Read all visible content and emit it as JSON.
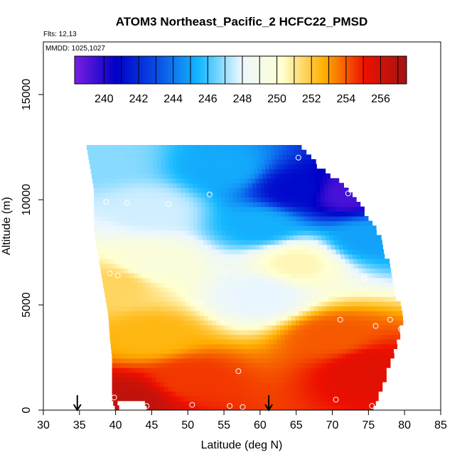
{
  "chart_data": {
    "type": "heatmap",
    "title": "ATOM3 Northeast_Pacific_2 HCFC22_PMSD",
    "flights_label": "Flts: 12,13",
    "dates_label": "MMDD: 1025,1027",
    "xlabel": "Latitude (deg N)",
    "ylabel": "Altitude (m)",
    "xlim": [
      30,
      85
    ],
    "ylim": [
      0,
      17500
    ],
    "x_ticks": [
      "30",
      "35",
      "40",
      "45",
      "50",
      "55",
      "60",
      "65",
      "70",
      "75",
      "80",
      "85"
    ],
    "y_ticks": [
      "0",
      "5000",
      "10000",
      "15000"
    ],
    "colorbar": {
      "min": 238.3,
      "max": 257.5,
      "tick_labels": [
        "240",
        "242",
        "244",
        "246",
        "248",
        "250",
        "252",
        "254",
        "256"
      ],
      "colors": [
        "#7a1fe0",
        "#0000c8",
        "#0a4fe6",
        "#15b8ff",
        "#eaf6ff",
        "#ffffd0",
        "#ffb000",
        "#ee1000",
        "#a21414"
      ]
    },
    "field": {
      "description_points": [
        {
          "lat": 38,
          "alt": 12000,
          "value": 246.8
        },
        {
          "lat": 55,
          "alt": 11500,
          "value": 245.2
        },
        {
          "lat": 65,
          "alt": 10500,
          "value": 241.0
        },
        {
          "lat": 72,
          "alt": 10300,
          "value": 239.3
        },
        {
          "lat": 45,
          "alt": 9500,
          "value": 247.6
        },
        {
          "lat": 60,
          "alt": 8800,
          "value": 245.3
        },
        {
          "lat": 75,
          "alt": 8200,
          "value": 245.0
        },
        {
          "lat": 45,
          "alt": 7000,
          "value": 249.8
        },
        {
          "lat": 65,
          "alt": 7000,
          "value": 250.6
        },
        {
          "lat": 40,
          "alt": 6000,
          "value": 251.6
        },
        {
          "lat": 60,
          "alt": 5500,
          "value": 247.9
        },
        {
          "lat": 45,
          "alt": 3500,
          "value": 252.5
        },
        {
          "lat": 70,
          "alt": 3500,
          "value": 254.0
        },
        {
          "lat": 50,
          "alt": 1500,
          "value": 254.5
        },
        {
          "lat": 75,
          "alt": 2000,
          "value": 255.5
        },
        {
          "lat": 42,
          "alt": 500,
          "value": 256.5
        }
      ]
    },
    "sample_points": [
      {
        "lat": 65.3,
        "alt": 12000
      },
      {
        "lat": 72.2,
        "alt": 10300
      },
      {
        "lat": 53.0,
        "alt": 10250
      },
      {
        "lat": 38.7,
        "alt": 9900
      },
      {
        "lat": 41.6,
        "alt": 9850
      },
      {
        "lat": 47.3,
        "alt": 9800
      },
      {
        "lat": 37.5,
        "alt": 7200
      },
      {
        "lat": 60.2,
        "alt": 7050
      },
      {
        "lat": 69.6,
        "alt": 7150
      },
      {
        "lat": 39.2,
        "alt": 6500
      },
      {
        "lat": 40.3,
        "alt": 6400
      },
      {
        "lat": 55.0,
        "alt": 6500
      },
      {
        "lat": 74.4,
        "alt": 6250
      },
      {
        "lat": 51.5,
        "alt": 5150
      },
      {
        "lat": 38.3,
        "alt": 4600
      },
      {
        "lat": 71.1,
        "alt": 4300
      },
      {
        "lat": 76.0,
        "alt": 4000
      },
      {
        "lat": 78.0,
        "alt": 4300
      },
      {
        "lat": 79.5,
        "alt": 3850
      },
      {
        "lat": 57.0,
        "alt": 1850
      },
      {
        "lat": 39.8,
        "alt": 600
      },
      {
        "lat": 70.5,
        "alt": 500
      },
      {
        "lat": 44.3,
        "alt": 200
      },
      {
        "lat": 50.6,
        "alt": 250
      },
      {
        "lat": 55.8,
        "alt": 200
      },
      {
        "lat": 57.6,
        "alt": 150
      },
      {
        "lat": 75.5,
        "alt": 200
      }
    ],
    "arrows_lat": [
      34.7,
      61.2
    ]
  }
}
